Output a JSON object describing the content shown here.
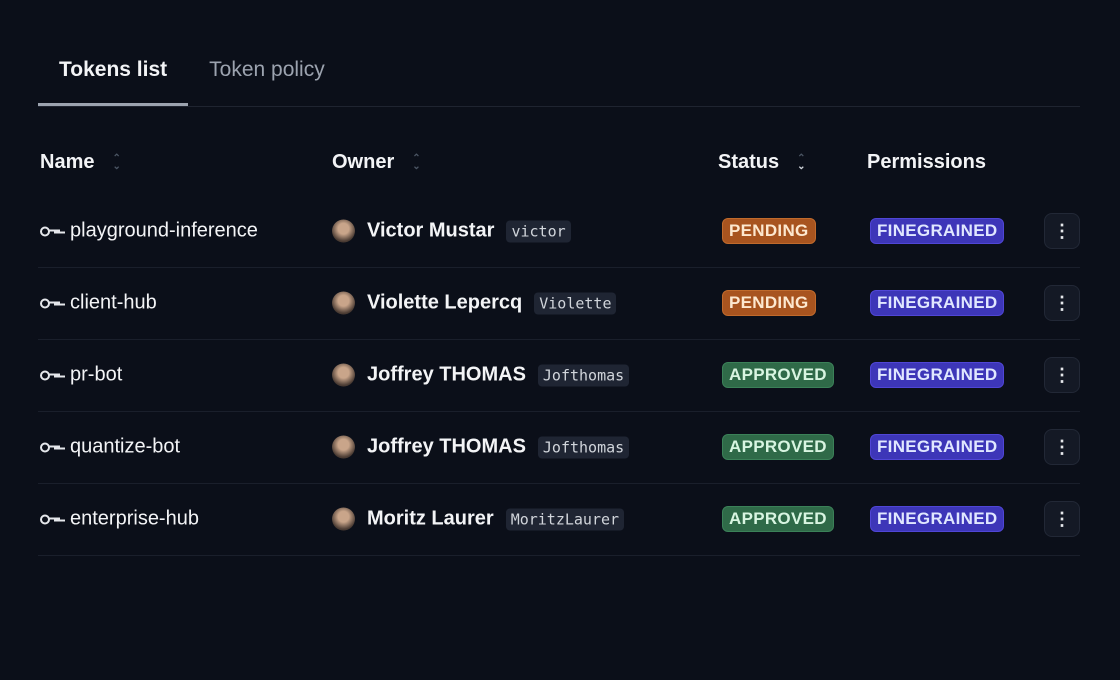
{
  "tabs": [
    {
      "label": "Tokens list",
      "active": true
    },
    {
      "label": "Token policy",
      "active": false
    }
  ],
  "columns": {
    "name": "Name",
    "owner": "Owner",
    "status": "Status",
    "permissions": "Permissions"
  },
  "colors": {
    "background": "#0b0f19",
    "pending": "#a8541f",
    "approved": "#2f6a48",
    "finegrained": "#3d36b8"
  },
  "rows": [
    {
      "name": "playground-inference",
      "owner": "Victor Mustar",
      "username": "victor",
      "status": "PENDING",
      "permission": "FINEGRAINED"
    },
    {
      "name": "client-hub",
      "owner": "Violette Lepercq",
      "username": "Violette",
      "status": "PENDING",
      "permission": "FINEGRAINED"
    },
    {
      "name": "pr-bot",
      "owner": "Joffrey THOMAS",
      "username": "Jofthomas",
      "status": "APPROVED",
      "permission": "FINEGRAINED"
    },
    {
      "name": "quantize-bot",
      "owner": "Joffrey THOMAS",
      "username": "Jofthomas",
      "status": "APPROVED",
      "permission": "FINEGRAINED"
    },
    {
      "name": "enterprise-hub",
      "owner": "Moritz Laurer",
      "username": "MoritzLaurer",
      "status": "APPROVED",
      "permission": "FINEGRAINED"
    }
  ],
  "menu_icon": "⋮"
}
